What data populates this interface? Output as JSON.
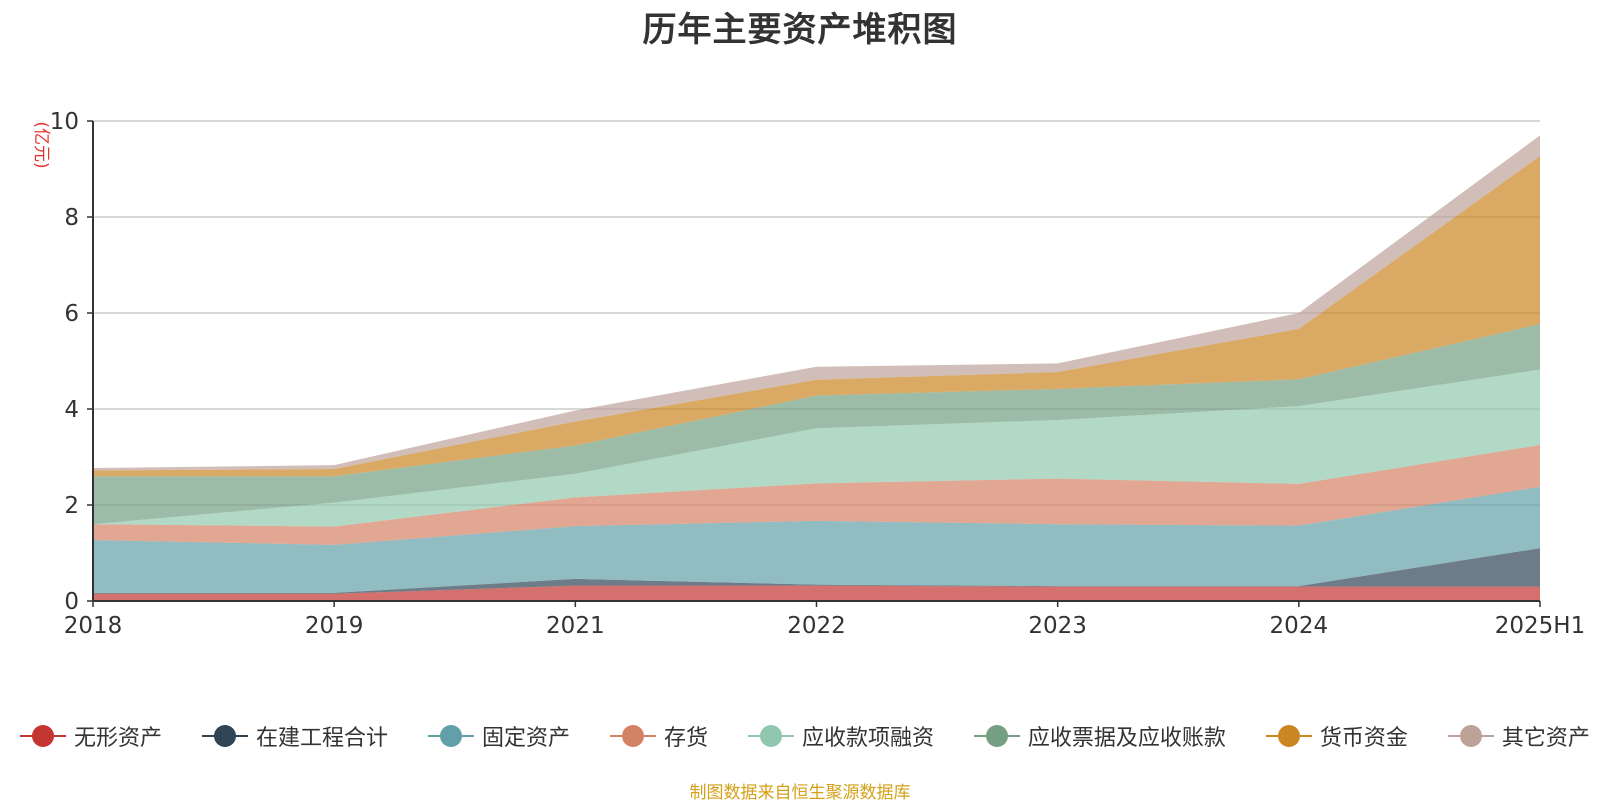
{
  "title": "历年主要资产堆积图",
  "source_note": "制图数据来自恒生聚源数据库",
  "chart_data": {
    "type": "area",
    "stacked": true,
    "title": "历年主要资产堆积图",
    "ylabel": "(亿元)",
    "xlabel": "",
    "ylim": [
      0,
      10
    ],
    "yticks": [
      0,
      2,
      4,
      6,
      8,
      10
    ],
    "grid": true,
    "legend_position": "bottom",
    "categories": [
      "2018",
      "2019",
      "2021",
      "2022",
      "2023",
      "2024",
      "2025H1"
    ],
    "series": [
      {
        "name": "无形资产",
        "color": "#c23531",
        "values": [
          0.15,
          0.15,
          0.32,
          0.32,
          0.3,
          0.3,
          0.3
        ]
      },
      {
        "name": "在建工程合计",
        "color": "#2f4554",
        "values": [
          0.02,
          0.02,
          0.14,
          0.02,
          0.01,
          0.01,
          0.8
        ]
      },
      {
        "name": "固定资产",
        "color": "#61a0a8",
        "values": [
          1.1,
          1.0,
          1.1,
          1.33,
          1.29,
          1.26,
          1.28
        ]
      },
      {
        "name": "存货",
        "color": "#d48265",
        "values": [
          0.33,
          0.38,
          0.6,
          0.78,
          0.95,
          0.87,
          0.87
        ]
      },
      {
        "name": "应收款项融资",
        "color": "#91c7ae",
        "values": [
          0.0,
          0.5,
          0.49,
          1.15,
          1.22,
          1.62,
          1.57
        ]
      },
      {
        "name": "应收票据及应收账款",
        "color": "#749f83",
        "values": [
          1.0,
          0.55,
          0.59,
          0.68,
          0.65,
          0.56,
          0.95
        ]
      },
      {
        "name": "货币资金",
        "color": "#ca8622",
        "values": [
          0.12,
          0.15,
          0.5,
          0.33,
          0.35,
          1.05,
          3.5
        ]
      },
      {
        "name": "其它资产",
        "color": "#bda29a",
        "values": [
          0.05,
          0.08,
          0.23,
          0.27,
          0.18,
          0.33,
          0.43
        ]
      }
    ]
  }
}
